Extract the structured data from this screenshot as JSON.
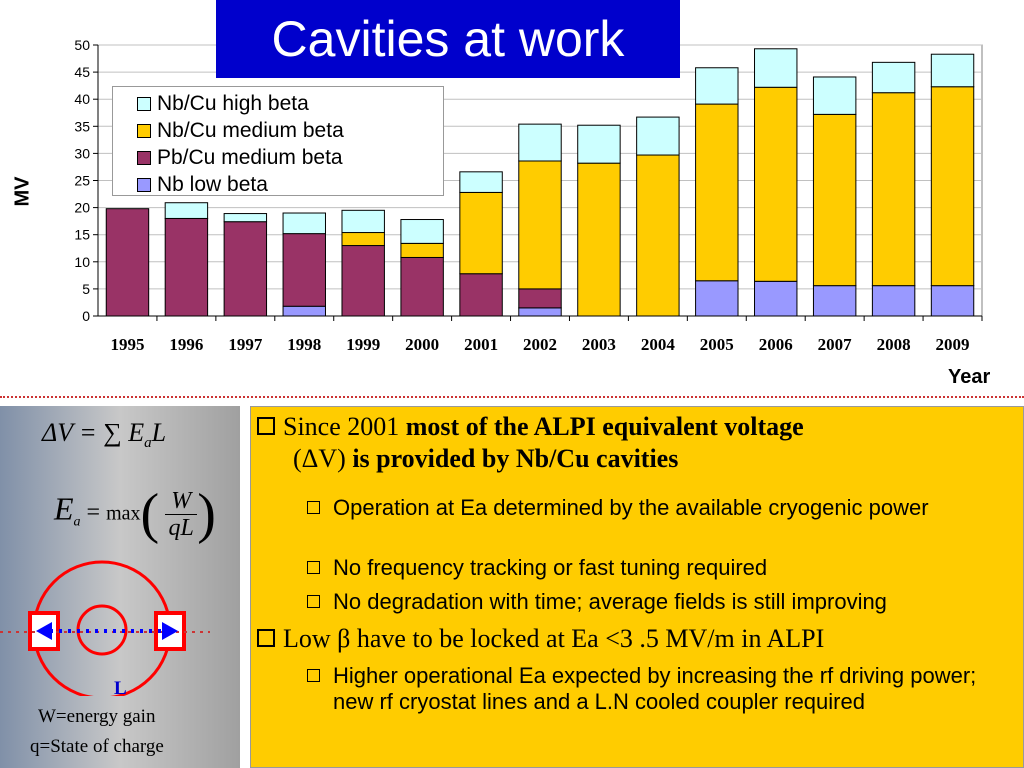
{
  "slide_title": "Cavities at work",
  "chart_data": {
    "type": "bar",
    "stacked": true,
    "categories": [
      "1995",
      "1996",
      "1997",
      "1998",
      "1999",
      "2000",
      "2001",
      "2002",
      "2003",
      "2004",
      "2005",
      "2006",
      "2007",
      "2008",
      "2009"
    ],
    "series": [
      {
        "name": "Nb low beta",
        "color": "#9999ff",
        "values": [
          0,
          0,
          0,
          1.8,
          0,
          0,
          0,
          1.5,
          0,
          0,
          6.5,
          6.4,
          5.6,
          5.6,
          5.6
        ]
      },
      {
        "name": "Pb/Cu medium beta",
        "color": "#993366",
        "values": [
          19.8,
          18.0,
          17.4,
          13.4,
          13.0,
          10.8,
          7.8,
          3.5,
          0,
          0,
          0,
          0,
          0,
          0,
          0
        ]
      },
      {
        "name": "Nb/Cu medium beta",
        "color": "#ffcc00",
        "values": [
          0,
          0,
          0,
          0,
          2.4,
          2.6,
          15.0,
          23.6,
          28.2,
          29.7,
          32.6,
          35.8,
          31.6,
          35.6,
          36.7
        ]
      },
      {
        "name": "Nb/Cu high beta",
        "color": "#ccffff",
        "values": [
          0,
          2.9,
          1.5,
          3.8,
          4.1,
          4.4,
          3.8,
          6.8,
          7.0,
          7.0,
          6.7,
          7.1,
          6.9,
          5.6,
          6.0
        ]
      }
    ],
    "legend_order": [
      "Nb/Cu high beta",
      "Nb/Cu medium beta",
      "Pb/Cu medium beta",
      "Nb low beta"
    ],
    "ylim": [
      0,
      50
    ],
    "yticks": [
      0,
      5,
      10,
      15,
      20,
      25,
      30,
      35,
      40,
      45,
      50
    ],
    "ylabel": "MV",
    "xlabel": "Year",
    "legend_position": "top-left"
  },
  "formulas": {
    "dv": "ΔV = ∑ E",
    "dv_sub": "a",
    "dv_tail": "L",
    "ea": "E",
    "ea_sub": "a",
    "ea_eq": " = ",
    "max": "max",
    "num": "W",
    "den": "qL"
  },
  "cavity_diagram": {
    "label": "L"
  },
  "legend_notes": {
    "w": "W=energy gain",
    "q": "q=State of charge"
  },
  "bullets": {
    "b1_pre": "Since 2001 ",
    "b1_bold": "most of the ALPI equivalent  voltage",
    "b1_line2_pre": "(ΔV) ",
    "b1_line2_bold": "is provided  by Nb/Cu cavities",
    "s1": "Operation at Ea determined by the available cryogenic power",
    "s2": " No frequency tracking or fast tuning  required",
    "s3": "No degradation with time; average fields is still improving",
    "b2": "Low β have to be locked at Ea <3 .5 MV/m in ALPI",
    "s4": "Higher  operational Ea expected by increasing the rf driving power; new rf cryostat lines and a L.N cooled coupler required"
  }
}
